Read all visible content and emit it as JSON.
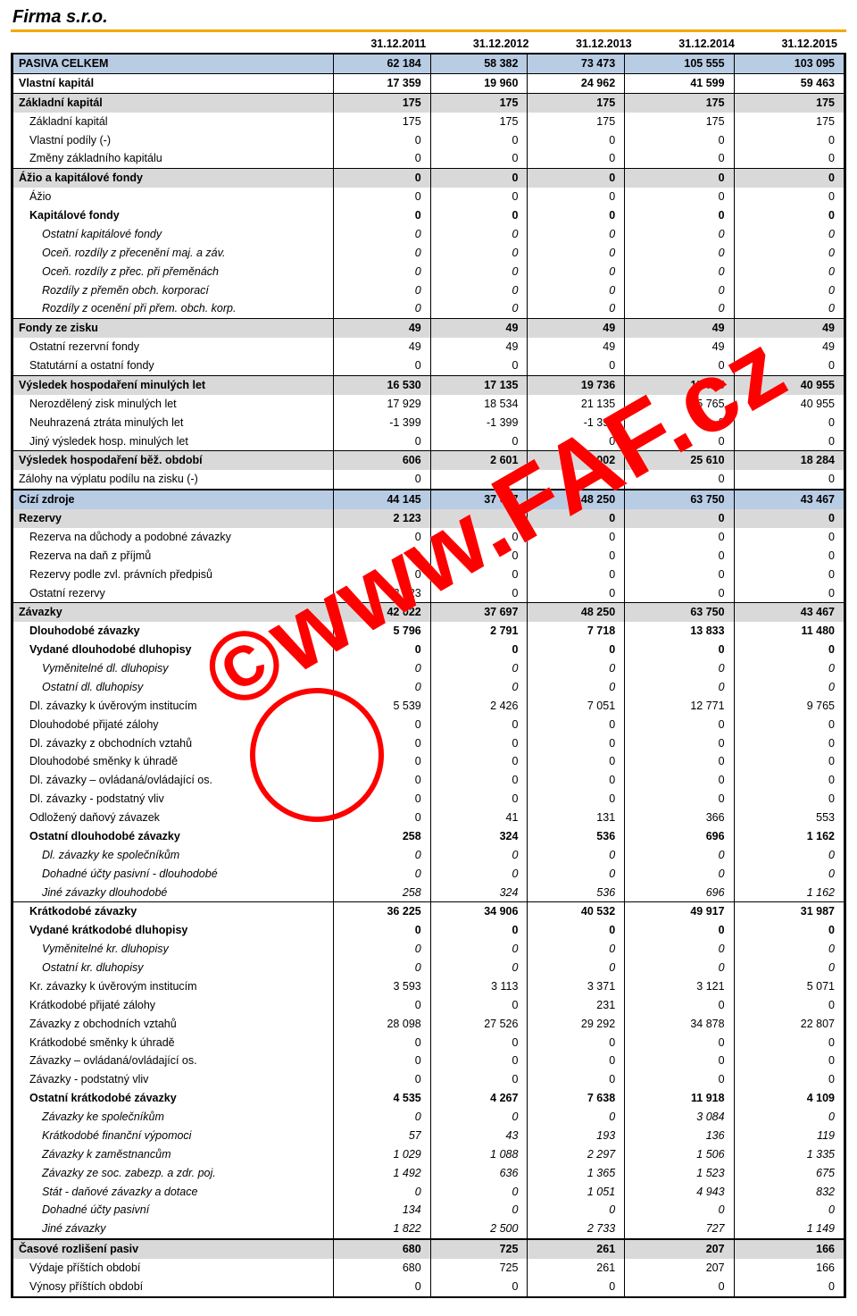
{
  "company": "Firma s.r.o.",
  "watermark": "©www.FAF.cz",
  "colors": {
    "accent_orange": "#f2a900",
    "row_blue": "#b8cce4",
    "row_grey": "#d9d9d9",
    "border": "#000000",
    "watermark": "#ff0000",
    "background": "#ffffff"
  },
  "dates": [
    "31.12.2011",
    "31.12.2012",
    "31.12.2013",
    "31.12.2014",
    "31.12.2015"
  ],
  "rows": [
    {
      "label": "PASIVA CELKEM",
      "style": "group-blue bt-thick",
      "indent": 0,
      "v": [
        "62 184",
        "58 382",
        "73 473",
        "105 555",
        "103 095"
      ]
    },
    {
      "label": "Vlastní kapitál",
      "style": "bold bt-thin",
      "indent": 0,
      "v": [
        "17 359",
        "19 960",
        "24 962",
        "41 599",
        "59 463"
      ]
    },
    {
      "label": "Základní kapitál",
      "style": "group-grey bt-thin",
      "indent": 0,
      "v": [
        "175",
        "175",
        "175",
        "175",
        "175"
      ]
    },
    {
      "label": "Základní kapitál",
      "style": "",
      "indent": 1,
      "v": [
        "175",
        "175",
        "175",
        "175",
        "175"
      ]
    },
    {
      "label": "Vlastní podíly (-)",
      "style": "",
      "indent": 1,
      "v": [
        "0",
        "0",
        "0",
        "0",
        "0"
      ]
    },
    {
      "label": "Změny základního kapitálu",
      "style": "",
      "indent": 1,
      "v": [
        "0",
        "0",
        "0",
        "0",
        "0"
      ]
    },
    {
      "label": "Ážio a kapitálové fondy",
      "style": "group-grey bt-thin",
      "indent": 0,
      "v": [
        "0",
        "0",
        "0",
        "0",
        "0"
      ]
    },
    {
      "label": "Ážio",
      "style": "",
      "indent": 1,
      "v": [
        "0",
        "0",
        "0",
        "0",
        "0"
      ]
    },
    {
      "label": "Kapitálové fondy",
      "style": "bold",
      "indent": 1,
      "v": [
        "0",
        "0",
        "0",
        "0",
        "0"
      ]
    },
    {
      "label": "Ostatní kapitálové fondy",
      "style": "italic",
      "indent": 2,
      "v": [
        "0",
        "0",
        "0",
        "0",
        "0"
      ]
    },
    {
      "label": "Oceň. rozdíly z přecenění maj. a záv.",
      "style": "italic",
      "indent": 2,
      "v": [
        "0",
        "0",
        "0",
        "0",
        "0"
      ]
    },
    {
      "label": "Oceň. rozdíly z přec. při přeměnách",
      "style": "italic",
      "indent": 2,
      "v": [
        "0",
        "0",
        "0",
        "0",
        "0"
      ]
    },
    {
      "label": "Rozdíly z přeměn obch. korporací",
      "style": "italic",
      "indent": 2,
      "v": [
        "0",
        "0",
        "0",
        "0",
        "0"
      ]
    },
    {
      "label": "Rozdíly z ocenění při přem. obch. korp.",
      "style": "italic",
      "indent": 2,
      "v": [
        "0",
        "0",
        "0",
        "0",
        "0"
      ]
    },
    {
      "label": "Fondy ze zisku",
      "style": "group-grey bt-thin",
      "indent": 0,
      "v": [
        "49",
        "49",
        "49",
        "49",
        "49"
      ]
    },
    {
      "label": "Ostatní rezervní fondy",
      "style": "",
      "indent": 1,
      "v": [
        "49",
        "49",
        "49",
        "49",
        "49"
      ]
    },
    {
      "label": "Statutární a ostatní fondy",
      "style": "",
      "indent": 1,
      "v": [
        "0",
        "0",
        "0",
        "0",
        "0"
      ]
    },
    {
      "label": "Výsledek hospodaření minulých let",
      "style": "group-grey bt-thin",
      "indent": 0,
      "v": [
        "16 530",
        "17 135",
        "19 736",
        "15 765",
        "40 955"
      ]
    },
    {
      "label": "Nerozdělený zisk minulých let",
      "style": "",
      "indent": 1,
      "v": [
        "17 929",
        "18 534",
        "21 135",
        "15 765",
        "40 955"
      ]
    },
    {
      "label": "Neuhrazená ztráta minulých let",
      "style": "",
      "indent": 1,
      "v": [
        "-1 399",
        "-1 399",
        "-1 399",
        "0",
        "0"
      ]
    },
    {
      "label": "Jiný výsledek hosp. minulých let",
      "style": "",
      "indent": 1,
      "v": [
        "0",
        "0",
        "0",
        "0",
        "0"
      ]
    },
    {
      "label": "Výsledek hospodaření běž. období",
      "style": "group-grey bt-thin",
      "indent": 0,
      "v": [
        "606",
        "2 601",
        "5 002",
        "25 610",
        "18 284"
      ]
    },
    {
      "label": "Zálohy na výplatu podílu na zisku (-)",
      "style": "",
      "indent": 0,
      "v": [
        "0",
        "0",
        "0",
        "0",
        "0"
      ]
    },
    {
      "label": "Cizí zdroje",
      "style": "group-blue bt-thick",
      "indent": 0,
      "v": [
        "44 145",
        "37 697",
        "48 250",
        "63 750",
        "43 467"
      ]
    },
    {
      "label": "Rezervy",
      "style": "group-grey",
      "indent": 0,
      "v": [
        "2 123",
        "0",
        "0",
        "0",
        "0"
      ]
    },
    {
      "label": "Rezerva na důchody a podobné závazky",
      "style": "",
      "indent": 1,
      "v": [
        "0",
        "0",
        "0",
        "0",
        "0"
      ]
    },
    {
      "label": "Rezerva na daň z příjmů",
      "style": "",
      "indent": 1,
      "v": [
        "0",
        "0",
        "0",
        "0",
        "0"
      ]
    },
    {
      "label": "Rezervy podle zvl. právních předpisů",
      "style": "",
      "indent": 1,
      "v": [
        "0",
        "0",
        "0",
        "0",
        "0"
      ]
    },
    {
      "label": "Ostatní rezervy",
      "style": "",
      "indent": 1,
      "v": [
        "2 123",
        "0",
        "0",
        "0",
        "0"
      ]
    },
    {
      "label": "Závazky",
      "style": "group-grey bt-thin",
      "indent": 0,
      "v": [
        "42 022",
        "37 697",
        "48 250",
        "63 750",
        "43 467"
      ]
    },
    {
      "label": "Dlouhodobé závazky",
      "style": "bold",
      "indent": 1,
      "v": [
        "5 796",
        "2 791",
        "7 718",
        "13 833",
        "11 480"
      ]
    },
    {
      "label": "Vydané dlouhodobé dluhopisy",
      "style": "bold",
      "indent": 1,
      "v": [
        "0",
        "0",
        "0",
        "0",
        "0"
      ]
    },
    {
      "label": "Vyměnitelné dl. dluhopisy",
      "style": "italic",
      "indent": 2,
      "v": [
        "0",
        "0",
        "0",
        "0",
        "0"
      ]
    },
    {
      "label": "Ostatní dl. dluhopisy",
      "style": "italic",
      "indent": 2,
      "v": [
        "0",
        "0",
        "0",
        "0",
        "0"
      ]
    },
    {
      "label": "Dl. závazky k úvěrovým institucím",
      "style": "",
      "indent": 1,
      "v": [
        "5 539",
        "2 426",
        "7 051",
        "12 771",
        "9 765"
      ]
    },
    {
      "label": "Dlouhodobé přijaté zálohy",
      "style": "",
      "indent": 1,
      "v": [
        "0",
        "0",
        "0",
        "0",
        "0"
      ]
    },
    {
      "label": "Dl. závazky z obchodních vztahů",
      "style": "",
      "indent": 1,
      "v": [
        "0",
        "0",
        "0",
        "0",
        "0"
      ]
    },
    {
      "label": "Dlouhodobé směnky k úhradě",
      "style": "",
      "indent": 1,
      "v": [
        "0",
        "0",
        "0",
        "0",
        "0"
      ]
    },
    {
      "label": "Dl. závazky – ovládaná/ovládající os.",
      "style": "",
      "indent": 1,
      "v": [
        "0",
        "0",
        "0",
        "0",
        "0"
      ]
    },
    {
      "label": "Dl. závazky - podstatný vliv",
      "style": "",
      "indent": 1,
      "v": [
        "0",
        "0",
        "0",
        "0",
        "0"
      ]
    },
    {
      "label": "Odložený daňový závazek",
      "style": "",
      "indent": 1,
      "v": [
        "0",
        "41",
        "131",
        "366",
        "553"
      ]
    },
    {
      "label": "Ostatní dlouhodobé závazky",
      "style": "bold",
      "indent": 1,
      "v": [
        "258",
        "324",
        "536",
        "696",
        "1 162"
      ]
    },
    {
      "label": "Dl. závazky ke společníkům",
      "style": "italic",
      "indent": 2,
      "v": [
        "0",
        "0",
        "0",
        "0",
        "0"
      ]
    },
    {
      "label": "Dohadné účty pasivní - dlouhodobé",
      "style": "italic",
      "indent": 2,
      "v": [
        "0",
        "0",
        "0",
        "0",
        "0"
      ]
    },
    {
      "label": "Jiné závazky dlouhodobé",
      "style": "italic",
      "indent": 2,
      "v": [
        "258",
        "324",
        "536",
        "696",
        "1 162"
      ]
    },
    {
      "label": "Krátkodobé závazky",
      "style": "bold bt-thin",
      "indent": 1,
      "v": [
        "36 225",
        "34 906",
        "40 532",
        "49 917",
        "31 987"
      ]
    },
    {
      "label": "Vydané krátkodobé dluhopisy",
      "style": "bold",
      "indent": 1,
      "v": [
        "0",
        "0",
        "0",
        "0",
        "0"
      ]
    },
    {
      "label": "Vyměnitelné kr. dluhopisy",
      "style": "italic",
      "indent": 2,
      "v": [
        "0",
        "0",
        "0",
        "0",
        "0"
      ]
    },
    {
      "label": "Ostatní kr. dluhopisy",
      "style": "italic",
      "indent": 2,
      "v": [
        "0",
        "0",
        "0",
        "0",
        "0"
      ]
    },
    {
      "label": "Kr. závazky k úvěrovým institucím",
      "style": "",
      "indent": 1,
      "v": [
        "3 593",
        "3 113",
        "3 371",
        "3 121",
        "5 071"
      ]
    },
    {
      "label": "Krátkodobé přijaté zálohy",
      "style": "",
      "indent": 1,
      "v": [
        "0",
        "0",
        "231",
        "0",
        "0"
      ]
    },
    {
      "label": "Závazky z obchodních vztahů",
      "style": "",
      "indent": 1,
      "v": [
        "28 098",
        "27 526",
        "29 292",
        "34 878",
        "22 807"
      ]
    },
    {
      "label": "Krátkodobé směnky k úhradě",
      "style": "",
      "indent": 1,
      "v": [
        "0",
        "0",
        "0",
        "0",
        "0"
      ]
    },
    {
      "label": "Závazky – ovládaná/ovládající os.",
      "style": "",
      "indent": 1,
      "v": [
        "0",
        "0",
        "0",
        "0",
        "0"
      ]
    },
    {
      "label": "Závazky - podstatný vliv",
      "style": "",
      "indent": 1,
      "v": [
        "0",
        "0",
        "0",
        "0",
        "0"
      ]
    },
    {
      "label": "Ostatní krátkodobé závazky",
      "style": "bold",
      "indent": 1,
      "v": [
        "4 535",
        "4 267",
        "7 638",
        "11 918",
        "4 109"
      ]
    },
    {
      "label": "Závazky ke společníkům",
      "style": "italic",
      "indent": 2,
      "v": [
        "0",
        "0",
        "0",
        "3 084",
        "0"
      ]
    },
    {
      "label": "Krátkodobé finanční výpomoci",
      "style": "italic",
      "indent": 2,
      "v": [
        "57",
        "43",
        "193",
        "136",
        "119"
      ]
    },
    {
      "label": "Závazky k zaměstnancům",
      "style": "italic",
      "indent": 2,
      "v": [
        "1 029",
        "1 088",
        "2 297",
        "1 506",
        "1 335"
      ]
    },
    {
      "label": "Závazky ze soc. zabezp. a zdr. poj.",
      "style": "italic",
      "indent": 2,
      "v": [
        "1 492",
        "636",
        "1 365",
        "1 523",
        "675"
      ]
    },
    {
      "label": "Stát - daňové závazky a dotace",
      "style": "italic",
      "indent": 2,
      "v": [
        "0",
        "0",
        "1 051",
        "4 943",
        "832"
      ]
    },
    {
      "label": "Dohadné účty pasivní",
      "style": "italic",
      "indent": 2,
      "v": [
        "134",
        "0",
        "0",
        "0",
        "0"
      ]
    },
    {
      "label": "Jiné závazky",
      "style": "italic",
      "indent": 2,
      "v": [
        "1 822",
        "2 500",
        "2 733",
        "727",
        "1 149"
      ]
    },
    {
      "label": "Časové rozlišení pasiv",
      "style": "group-grey bt-thick",
      "indent": 0,
      "v": [
        "680",
        "725",
        "261",
        "207",
        "166"
      ]
    },
    {
      "label": "Výdaje příštích období",
      "style": "",
      "indent": 1,
      "v": [
        "680",
        "725",
        "261",
        "207",
        "166"
      ]
    },
    {
      "label": "Výnosy příštích období",
      "style": "bb-thick",
      "indent": 1,
      "v": [
        "0",
        "0",
        "0",
        "0",
        "0"
      ]
    }
  ]
}
